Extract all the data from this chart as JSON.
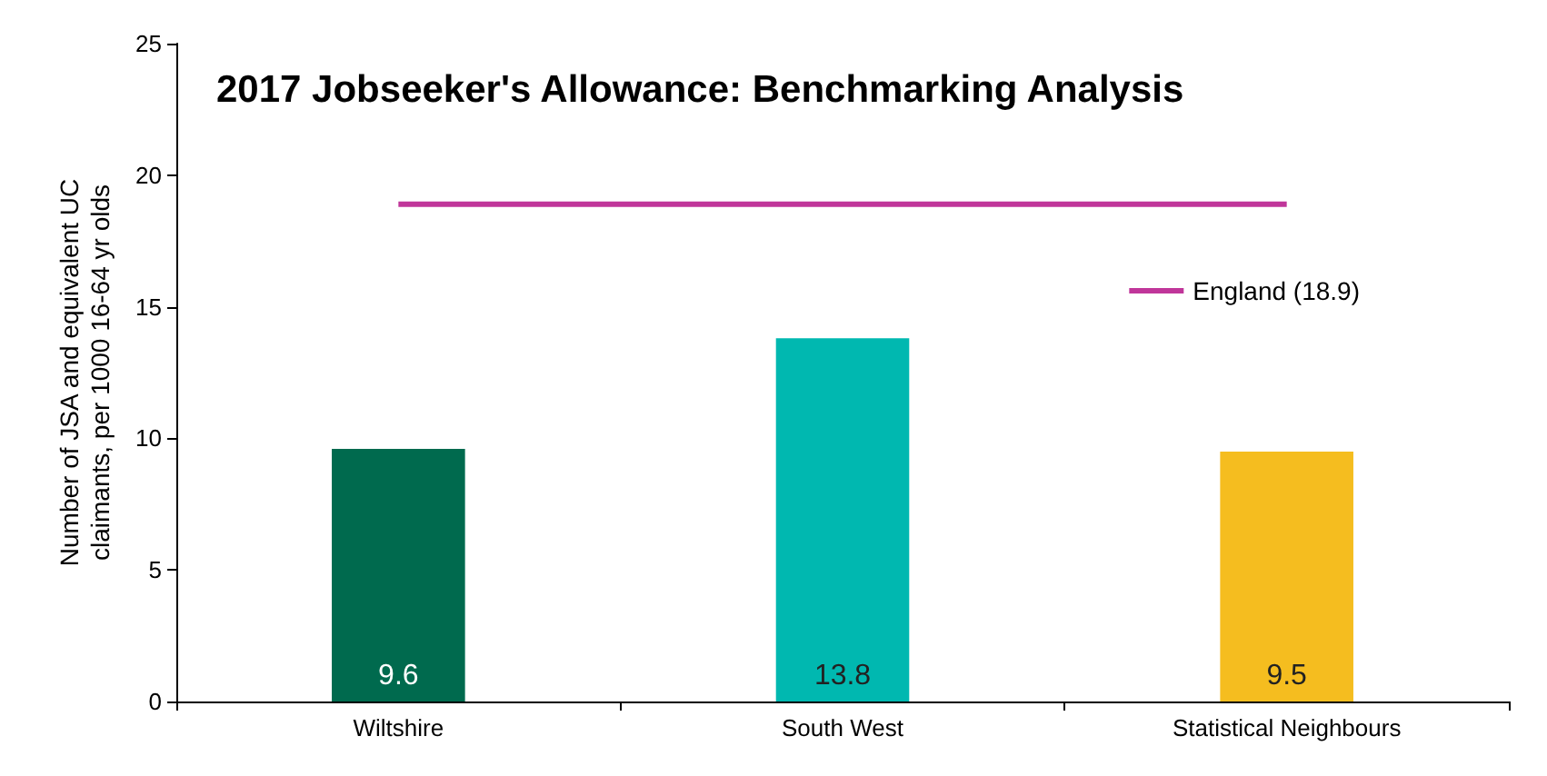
{
  "chart_data": {
    "type": "bar",
    "title": "2017 Jobseeker's Allowance: Benchmarking Analysis",
    "ylabel": "Number of JSA and equivalent UC claimants, per 1000 16-64 yr olds",
    "categories": [
      "Wiltshire",
      "South West",
      "Statistical Neighbours"
    ],
    "series": [
      {
        "colors": [
          "#006a4e",
          "#00b8b0",
          "#f5bd1f"
        ],
        "values": [
          9.6,
          13.8,
          9.5
        ],
        "value_labels": [
          "9.6",
          "13.8",
          "9.5"
        ]
      },
      {
        "type": "line",
        "name": "England (18.9)",
        "color": "#c0369a",
        "values": [
          18.9,
          18.9,
          18.9
        ]
      }
    ],
    "ylim": [
      0,
      25
    ],
    "yticks": [
      0,
      5,
      10,
      15,
      20,
      25
    ],
    "grid": false,
    "legend": "top right",
    "marker": "none"
  }
}
